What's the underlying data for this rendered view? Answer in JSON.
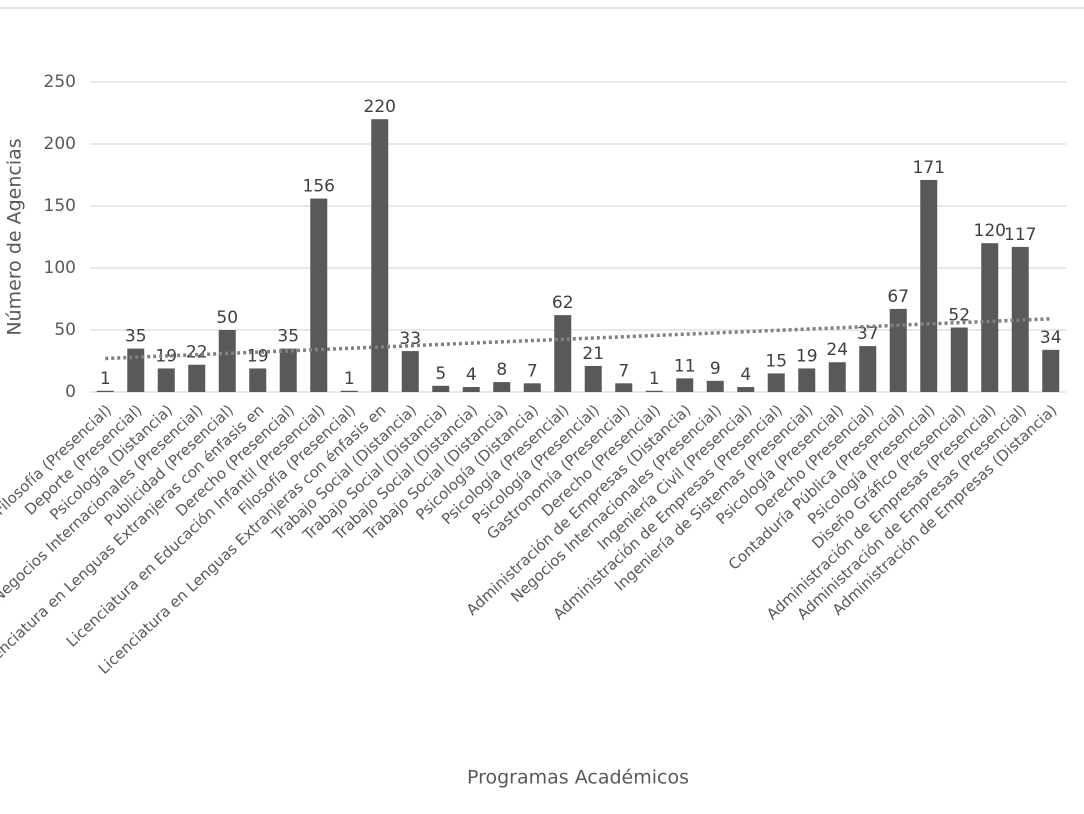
{
  "chart_data": {
    "type": "bar",
    "x_label": "Programas Académicos",
    "y_label": "Número de Agencias",
    "categories": [
      "Filosofía (Presencial)",
      "Deporte (Presencial)",
      "Psicología (Distancia)",
      "Negocios Internacionales (Presencial)",
      "Publicidad (Presencial)",
      "Licenciatura en Lenguas Extranjeras con énfasis en",
      "Derecho (Presencial)",
      "Licenciatura en Educación Infantil (Presencial)",
      "Filosofía (Presencial)",
      "Licenciatura en Lenguas Extranjeras con énfasis en",
      "Trabajo Social (Distancia)",
      "Trabajo Social (Distancia)",
      "Trabajo Social (Distancia)",
      "Trabajo Social (Distancia)",
      "Psicología (Distancia)",
      "Psicología (Presencial)",
      "Psicología (Presencial)",
      "Gastronomía (Presencial)",
      "Derecho (Presencial)",
      "Administración de Empresas (Distancia)",
      "Negocios Internacionales (Presencial)",
      "Ingeniería Civil (Presencial)",
      "Administración de Empresas (Presencial)",
      "Ingeniería de Sistemas (Presencial)",
      "Psicología (Presencial)",
      "Derecho (Presencial)",
      "Contaduría Pública (Presencial)",
      "Psicología (Presencial)",
      "Diseño Gráfico (Presencial)",
      "Administración de Empresas (Presencial)",
      "Administración de Empresas (Presencial)",
      "Administración de Empresas (Distancia)"
    ],
    "values": [
      1,
      35,
      19,
      22,
      50,
      19,
      35,
      156,
      1,
      220,
      33,
      5,
      4,
      8,
      7,
      62,
      21,
      7,
      1,
      11,
      9,
      4,
      15,
      19,
      24,
      37,
      67,
      171,
      52,
      120,
      117,
      34
    ],
    "color": "#595959",
    "trendline": {
      "values": [
        27,
        59
      ],
      "color": "#808080"
    },
    "ylim": [
      0,
      250
    ],
    "yticks": [
      0,
      50,
      100,
      150,
      200,
      250
    ],
    "grid": true
  }
}
